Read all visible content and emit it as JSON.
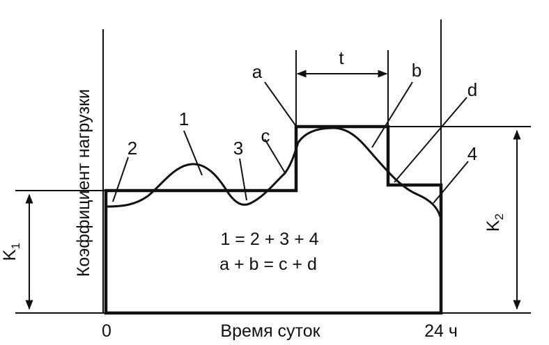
{
  "labels": {
    "y_axis": "Коэффициент нагрузки",
    "x_axis": "Время суток",
    "x_start": "0",
    "x_end": "24 ч",
    "k1_main": "K",
    "k1_sub": "1",
    "k2_main": "K",
    "k2_sub": "2",
    "t": "t",
    "a": "a",
    "b": "b",
    "c": "c",
    "d": "d",
    "n1": "1",
    "n2": "2",
    "n3": "3",
    "n4": "4"
  },
  "equations": {
    "line1": "1 = 2 + 3 + 4",
    "line2": "a + b = c + d"
  }
}
